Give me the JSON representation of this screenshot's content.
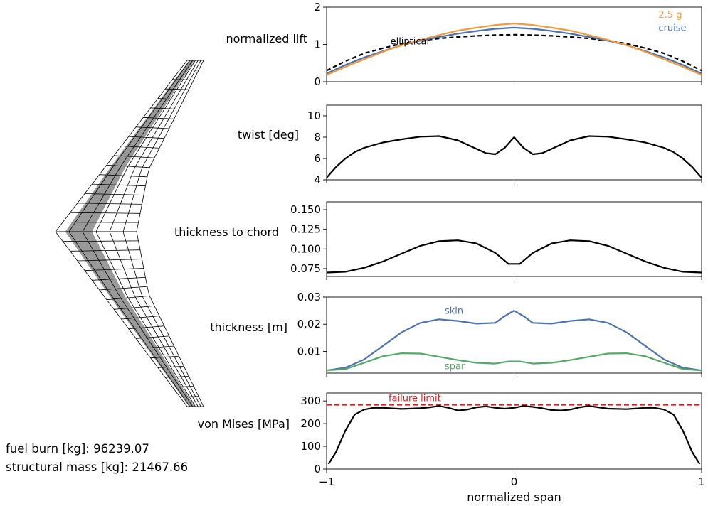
{
  "colors": {
    "blue": "#4c72b0",
    "orange": "#f59a3c",
    "green": "#55a868",
    "red": "#e41a1c",
    "black": "#000000",
    "mesh_fill": "#999999"
  },
  "stats": {
    "fuel_burn": "fuel burn [kg]: 96239.07",
    "structural_mass": "structural mass [kg]: 21467.66"
  },
  "chart_data": [
    {
      "type": "line",
      "ylabel": "normalized lift",
      "xlim": [
        -1,
        1
      ],
      "ylim": [
        0,
        2
      ],
      "yticks": [
        0,
        1,
        2
      ],
      "series": [
        {
          "name": "elliptical",
          "color": "black",
          "dash": true,
          "x": [
            -1,
            -0.9,
            -0.8,
            -0.7,
            -0.6,
            -0.5,
            -0.4,
            -0.3,
            -0.2,
            -0.1,
            0,
            0.1,
            0.2,
            0.3,
            0.4,
            0.5,
            0.6,
            0.7,
            0.8,
            0.9,
            1
          ],
          "y": [
            0.3,
            0.55,
            0.76,
            0.9,
            1.02,
            1.1,
            1.16,
            1.2,
            1.23,
            1.25,
            1.26,
            1.25,
            1.23,
            1.2,
            1.16,
            1.1,
            1.02,
            0.9,
            0.76,
            0.55,
            0.3
          ]
        },
        {
          "name": "cruise",
          "color": "blue",
          "dash": false,
          "x": [
            -1,
            -0.9,
            -0.8,
            -0.7,
            -0.6,
            -0.5,
            -0.4,
            -0.3,
            -0.2,
            -0.1,
            0,
            0.1,
            0.2,
            0.3,
            0.4,
            0.5,
            0.6,
            0.7,
            0.8,
            0.9,
            1
          ],
          "y": [
            0.22,
            0.45,
            0.65,
            0.82,
            0.98,
            1.1,
            1.2,
            1.29,
            1.36,
            1.42,
            1.45,
            1.42,
            1.36,
            1.29,
            1.2,
            1.1,
            0.98,
            0.82,
            0.65,
            0.45,
            0.22
          ]
        },
        {
          "name": "2.5 g",
          "color": "orange",
          "dash": false,
          "x": [
            -1,
            -0.9,
            -0.8,
            -0.7,
            -0.6,
            -0.5,
            -0.4,
            -0.3,
            -0.2,
            -0.1,
            0,
            0.1,
            0.2,
            0.3,
            0.4,
            0.5,
            0.6,
            0.7,
            0.8,
            0.9,
            1
          ],
          "y": [
            0.18,
            0.4,
            0.6,
            0.8,
            0.98,
            1.12,
            1.25,
            1.37,
            1.45,
            1.52,
            1.56,
            1.52,
            1.45,
            1.37,
            1.25,
            1.12,
            0.98,
            0.8,
            0.6,
            0.4,
            0.18
          ]
        }
      ],
      "annotations": [
        {
          "text": "elliptical",
          "color": "black",
          "x": -0.66,
          "y": 1.0
        },
        {
          "text": "cruise",
          "color": "blue",
          "x": 0.77,
          "y": 1.36
        },
        {
          "text": "2.5 g",
          "color": "orange",
          "x": 0.77,
          "y": 1.71
        }
      ]
    },
    {
      "type": "line",
      "ylabel": "twist [deg]",
      "xlim": [
        -1,
        1
      ],
      "ylim": [
        4,
        11
      ],
      "yticks": [
        4,
        6,
        8,
        10
      ],
      "series": [
        {
          "name": "",
          "color": "black",
          "dash": false,
          "x": [
            -1,
            -0.95,
            -0.9,
            -0.85,
            -0.8,
            -0.7,
            -0.6,
            -0.5,
            -0.4,
            -0.3,
            -0.2,
            -0.15,
            -0.1,
            -0.05,
            0,
            0.05,
            0.1,
            0.15,
            0.2,
            0.3,
            0.4,
            0.5,
            0.6,
            0.7,
            0.8,
            0.85,
            0.9,
            0.95,
            1
          ],
          "y": [
            4.2,
            5.2,
            6.0,
            6.6,
            7.0,
            7.5,
            7.8,
            8.05,
            8.1,
            7.7,
            6.9,
            6.5,
            6.4,
            7.0,
            8.0,
            7.0,
            6.4,
            6.5,
            6.9,
            7.7,
            8.1,
            8.05,
            7.8,
            7.5,
            7.0,
            6.6,
            6.0,
            5.2,
            4.2
          ]
        }
      ]
    },
    {
      "type": "line",
      "ylabel": "thickness to chord",
      "xlim": [
        -1,
        1
      ],
      "ylim": [
        0.065,
        0.16
      ],
      "yticks": [
        0.075,
        0.1,
        0.125,
        0.15
      ],
      "yticklabels": [
        "0.075",
        "0.100",
        "0.125",
        "0.150"
      ],
      "series": [
        {
          "name": "",
          "color": "black",
          "dash": false,
          "x": [
            -1,
            -0.9,
            -0.8,
            -0.7,
            -0.6,
            -0.5,
            -0.4,
            -0.3,
            -0.2,
            -0.1,
            -0.03,
            0.03,
            0.1,
            0.2,
            0.3,
            0.4,
            0.5,
            0.6,
            0.7,
            0.8,
            0.9,
            1
          ],
          "y": [
            0.07,
            0.071,
            0.076,
            0.084,
            0.094,
            0.104,
            0.11,
            0.111,
            0.107,
            0.095,
            0.081,
            0.081,
            0.095,
            0.107,
            0.111,
            0.11,
            0.104,
            0.094,
            0.084,
            0.076,
            0.071,
            0.07
          ]
        }
      ]
    },
    {
      "type": "line",
      "ylabel": "thickness [m]",
      "xlim": [
        -1,
        1
      ],
      "ylim": [
        0.002,
        0.03
      ],
      "yticks": [
        0.01,
        0.02,
        0.03
      ],
      "yticklabels": [
        "0.01",
        "0.02",
        "0.03"
      ],
      "series": [
        {
          "name": "skin",
          "color": "blue",
          "dash": false,
          "x": [
            -1,
            -0.9,
            -0.8,
            -0.7,
            -0.6,
            -0.5,
            -0.4,
            -0.3,
            -0.2,
            -0.1,
            -0.05,
            0,
            0.05,
            0.1,
            0.2,
            0.3,
            0.4,
            0.5,
            0.6,
            0.7,
            0.8,
            0.9,
            1
          ],
          "y": [
            0.003,
            0.004,
            0.007,
            0.012,
            0.017,
            0.0205,
            0.0218,
            0.0212,
            0.0202,
            0.0205,
            0.023,
            0.025,
            0.023,
            0.0205,
            0.0202,
            0.0212,
            0.0218,
            0.0205,
            0.017,
            0.012,
            0.007,
            0.004,
            0.003
          ]
        },
        {
          "name": "spar",
          "color": "green",
          "dash": false,
          "x": [
            -1,
            -0.9,
            -0.8,
            -0.7,
            -0.6,
            -0.5,
            -0.4,
            -0.3,
            -0.2,
            -0.1,
            -0.03,
            0.03,
            0.1,
            0.2,
            0.3,
            0.4,
            0.5,
            0.6,
            0.7,
            0.8,
            0.9,
            1
          ],
          "y": [
            0.003,
            0.0035,
            0.0058,
            0.0082,
            0.0093,
            0.0092,
            0.008,
            0.0068,
            0.0058,
            0.0055,
            0.0063,
            0.0063,
            0.0055,
            0.0058,
            0.0068,
            0.008,
            0.0092,
            0.0093,
            0.0082,
            0.0058,
            0.0035,
            0.003
          ]
        }
      ],
      "annotations": [
        {
          "text": "skin",
          "color": "blue",
          "x": -0.37,
          "y": 0.0238
        },
        {
          "text": "spar",
          "color": "green",
          "x": -0.37,
          "y": 0.0035
        }
      ]
    },
    {
      "type": "line",
      "ylabel": "von Mises [MPa]",
      "xlabel": "normalized span",
      "xlim": [
        -1,
        1
      ],
      "ylim": [
        0,
        335
      ],
      "yticks": [
        0,
        100,
        200,
        300
      ],
      "xticks": [
        -1,
        0,
        1
      ],
      "xticklabels": [
        "−1",
        "0",
        "1"
      ],
      "hline": {
        "y": 283,
        "color": "red",
        "label": "failure limit",
        "label_x": -0.67
      },
      "series": [
        {
          "name": "",
          "color": "black",
          "dash": false,
          "x": [
            -0.99,
            -0.95,
            -0.9,
            -0.85,
            -0.8,
            -0.75,
            -0.7,
            -0.6,
            -0.5,
            -0.45,
            -0.4,
            -0.35,
            -0.3,
            -0.25,
            -0.2,
            -0.15,
            -0.1,
            -0.05,
            0,
            0.05,
            0.1,
            0.15,
            0.2,
            0.25,
            0.3,
            0.35,
            0.4,
            0.45,
            0.5,
            0.6,
            0.7,
            0.75,
            0.8,
            0.85,
            0.9,
            0.95,
            0.99
          ],
          "y": [
            22,
            75,
            170,
            240,
            262,
            270,
            270,
            265,
            268,
            272,
            278,
            270,
            258,
            262,
            272,
            276,
            270,
            266,
            270,
            278,
            274,
            268,
            260,
            258,
            262,
            272,
            278,
            272,
            266,
            264,
            270,
            270,
            262,
            240,
            170,
            75,
            22
          ]
        }
      ]
    }
  ]
}
